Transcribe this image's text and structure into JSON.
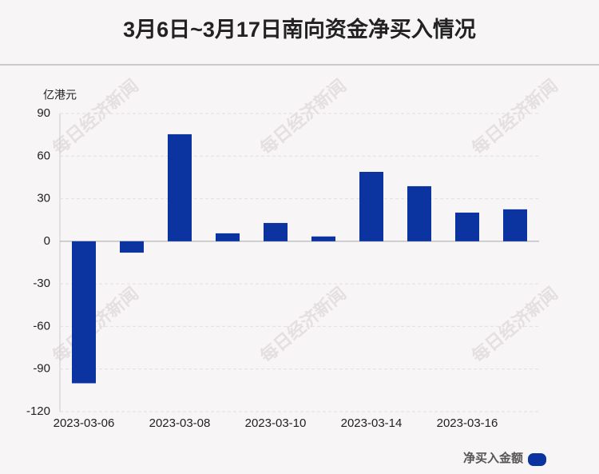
{
  "chart_data": {
    "type": "bar",
    "title": "3月6日~3月17日南向资金净买入情况",
    "y_label": "亿港元",
    "watermark": "每日经济新闻",
    "categories": [
      "2023-03-06",
      null,
      "2023-03-08",
      null,
      "2023-03-10",
      null,
      "2023-03-14",
      null,
      "2023-03-16",
      null
    ],
    "series": [
      {
        "name": "净买入金额",
        "color": "#0c34a0",
        "values": [
          -100,
          -8,
          75.4,
          5.6,
          12.9,
          3.4,
          48.9,
          38.8,
          20.2,
          22.5
        ]
      }
    ],
    "ylim": [
      -120,
      90
    ],
    "yticks": [
      -120,
      -90,
      -60,
      -30,
      0,
      30,
      60,
      90
    ],
    "grid": true
  }
}
